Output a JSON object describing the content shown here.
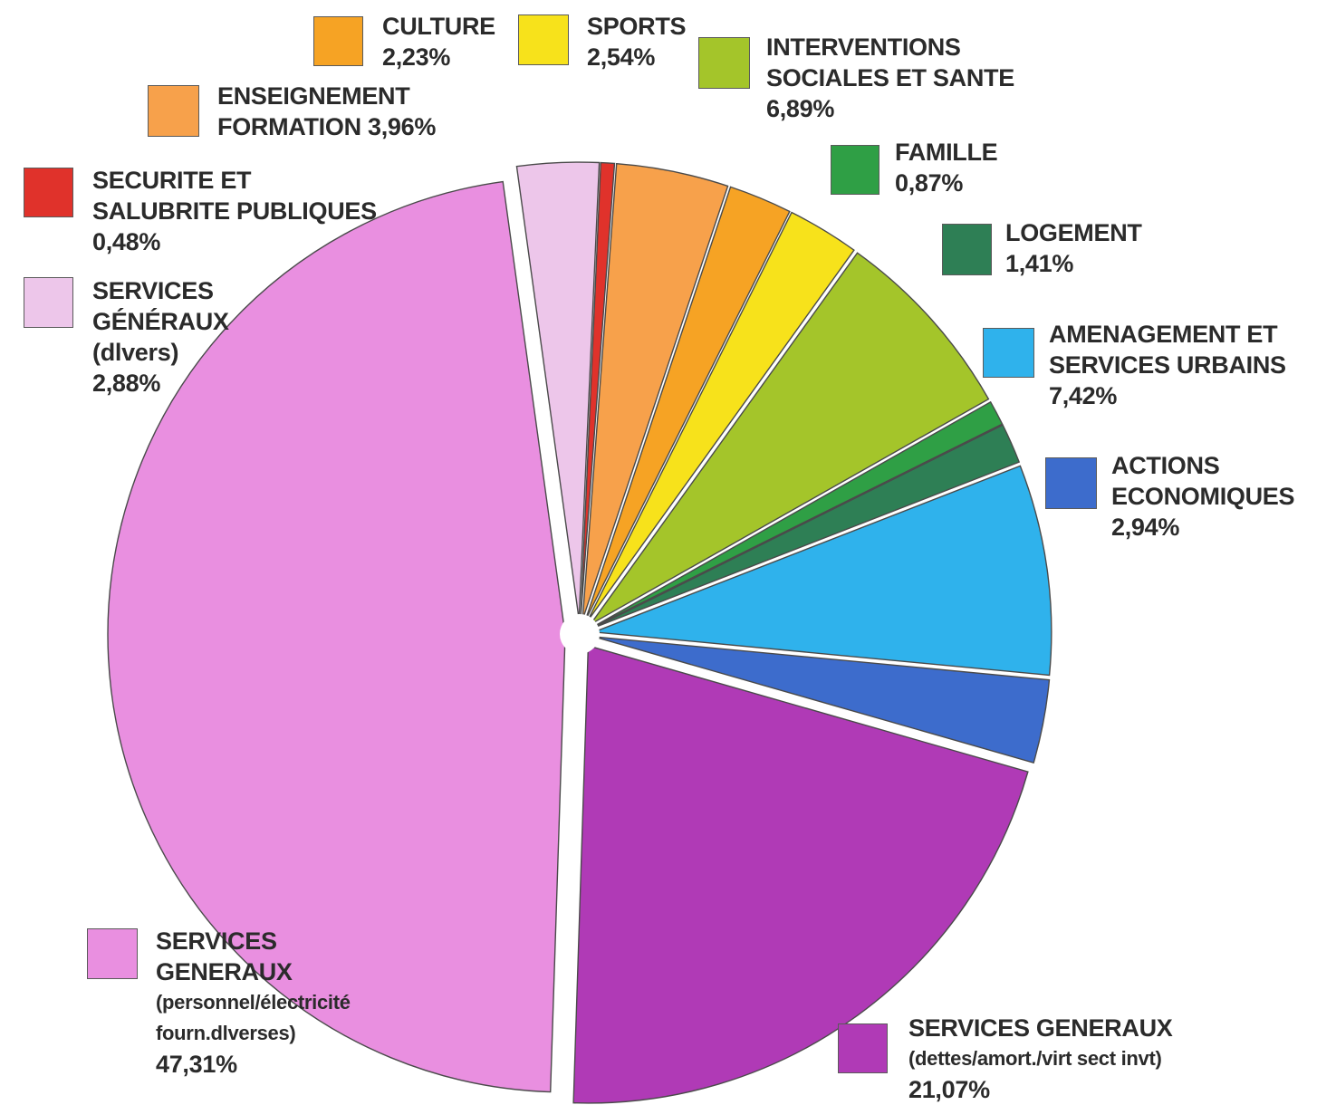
{
  "chart_data": {
    "type": "pie",
    "slices": [
      {
        "label_lines": [
          "SERVICES GENERAUX",
          "(dettes/amort./virt sect invt)"
        ],
        "value": 21.07,
        "value_text": "21,07%",
        "color": "#b03ab6"
      },
      {
        "label_lines": [
          "SERVICES",
          "GENERAUX",
          "(personnel/électricité",
          "fourn.dlverses)"
        ],
        "value": 47.31,
        "value_text": "47,31%",
        "color": "#e98fe0"
      },
      {
        "label_lines": [
          "SERVICES",
          "GÉNÉRAUX",
          "(dlvers)"
        ],
        "value": 2.88,
        "value_text": "2,88%",
        "color": "#edc6ea"
      },
      {
        "label_lines": [
          "SECURITE ET",
          "SALUBRITE PUBLIQUES"
        ],
        "value": 0.48,
        "value_text": "0,48%",
        "color": "#e0322b"
      },
      {
        "label_lines": [
          "ENSEIGNEMENT",
          "FORMATION 3,96%"
        ],
        "value": 3.96,
        "value_text": "",
        "color": "#f7a14b"
      },
      {
        "label_lines": [
          "CULTURE"
        ],
        "value": 2.23,
        "value_text": "2,23%",
        "color": "#f6a324"
      },
      {
        "label_lines": [
          "SPORTS"
        ],
        "value": 2.54,
        "value_text": "2,54%",
        "color": "#f7e21b"
      },
      {
        "label_lines": [
          "INTERVENTIONS",
          "SOCIALES ET SANTE"
        ],
        "value": 6.89,
        "value_text": "6,89%",
        "color": "#a4c52a"
      },
      {
        "label_lines": [
          "FAMILLE"
        ],
        "value": 0.87,
        "value_text": "0,87%",
        "color": "#2f9f45"
      },
      {
        "label_lines": [
          "LOGEMENT"
        ],
        "value": 1.41,
        "value_text": "1,41%",
        "color": "#2e7f55"
      },
      {
        "label_lines": [
          "AMENAGEMENT ET",
          "SERVICES URBAINS"
        ],
        "value": 7.42,
        "value_text": "7,42%",
        "color": "#2fb2ec"
      },
      {
        "label_lines": [
          "ACTIONS",
          " ECONOMIQUES"
        ],
        "value": 2.94,
        "value_text": "2,94%",
        "color": "#3d6ccc"
      }
    ]
  }
}
